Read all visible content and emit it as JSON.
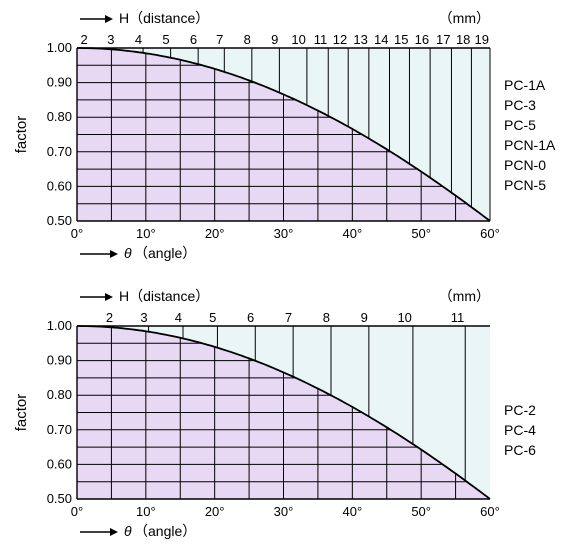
{
  "chart_data": [
    {
      "type": "area",
      "top_axis": {
        "label": "H（distance）",
        "unit": "（mm）",
        "ticks": [
          "2",
          "3",
          "4",
          "5",
          "6",
          "7",
          "8",
          "9",
          "10",
          "11",
          "12",
          "13",
          "14",
          "15",
          "16",
          "17",
          "18",
          "19"
        ],
        "tick_angles": [
          1.7,
          5.6,
          9.6,
          13.6,
          17.6,
          21.4,
          25.4,
          29.4,
          33.4,
          36.5,
          39.4,
          42.4,
          45.4,
          48.3,
          51.3,
          54.4,
          57.3,
          60.0
        ]
      },
      "bottom_axis": {
        "label": "（angle）",
        "symbol": "θ",
        "ticks": [
          "0°",
          "10°",
          "20°",
          "30°",
          "40°",
          "50°",
          "60°"
        ],
        "xlim": [
          0,
          60
        ]
      },
      "y_axis": {
        "label": "factor",
        "ticks": [
          "0.50",
          "0.60",
          "0.70",
          "0.80",
          "0.90",
          "1.00"
        ],
        "ylim": [
          0.5,
          1.0
        ]
      },
      "curve": {
        "x": [
          0,
          5,
          10,
          15,
          20,
          25,
          30,
          35,
          40,
          45,
          50,
          55,
          60
        ],
        "y": [
          1.0,
          0.996,
          0.985,
          0.966,
          0.94,
          0.906,
          0.866,
          0.819,
          0.766,
          0.707,
          0.643,
          0.574,
          0.5
        ]
      },
      "models": [
        "PC-1A",
        "PC-3",
        "PC-5",
        "PCN-1A",
        "PCN-0",
        "PCN-5"
      ],
      "colors": {
        "under": "#e7d9f3",
        "over": "#eaf6f6",
        "line": "#000000"
      }
    },
    {
      "type": "area",
      "top_axis": {
        "label": "H（distance）",
        "unit": "（mm）",
        "ticks": [
          "2",
          "3",
          "4",
          "5",
          "6",
          "7",
          "8",
          "9",
          "10",
          "11"
        ],
        "tick_angles": [
          5.4,
          10.4,
          15.4,
          20.4,
          25.9,
          31.4,
          36.9,
          42.4,
          48.8,
          56.4
        ]
      },
      "bottom_axis": {
        "label": "（angle）",
        "symbol": "θ",
        "ticks": [
          "0°",
          "10°",
          "20°",
          "30°",
          "40°",
          "50°",
          "60°"
        ],
        "xlim": [
          0,
          60
        ]
      },
      "y_axis": {
        "label": "factor",
        "ticks": [
          "0.50",
          "0.60",
          "0.70",
          "0.80",
          "0.90",
          "1.00"
        ],
        "ylim": [
          0.5,
          1.0
        ]
      },
      "curve": {
        "x": [
          0,
          5,
          10,
          15,
          20,
          25,
          30,
          35,
          40,
          45,
          50,
          55,
          60
        ],
        "y": [
          1.0,
          0.996,
          0.985,
          0.966,
          0.94,
          0.906,
          0.866,
          0.819,
          0.766,
          0.707,
          0.643,
          0.574,
          0.5
        ]
      },
      "models": [
        "PC-2",
        "PC-4",
        "PC-6"
      ],
      "colors": {
        "under": "#e7d9f3",
        "over": "#eaf6f6",
        "line": "#000000"
      }
    }
  ]
}
